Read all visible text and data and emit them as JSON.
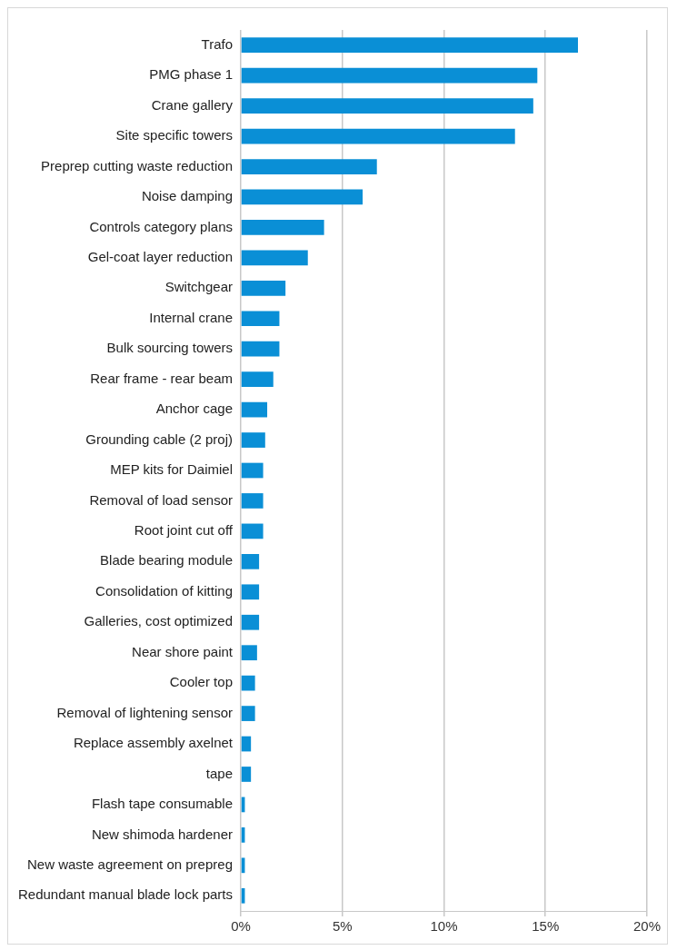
{
  "chart_data": {
    "type": "bar",
    "orientation": "horizontal",
    "categories": [
      "Trafo",
      "PMG phase 1",
      "Crane gallery",
      "Site specific towers",
      "Preprep cutting waste reduction",
      "Noise damping",
      "Controls category plans",
      "Gel-coat layer reduction",
      "Switchgear",
      "Internal crane",
      "Bulk sourcing towers",
      "Rear frame - rear beam",
      "Anchor cage",
      "Grounding cable (2 proj)",
      "MEP kits for Daimiel",
      "Removal of load sensor",
      "Root joint cut off",
      "Blade bearing module",
      "Consolidation of kitting",
      "Galleries, cost optimized",
      "Near shore paint",
      "Cooler top",
      "Removal of lightening sensor",
      "Replace assembly axelnet",
      "tape",
      "Flash tape consumable",
      "New shimoda hardener",
      "New waste agreement on prepreg",
      "Redundant manual blade lock parts"
    ],
    "values": [
      16.6,
      14.6,
      14.4,
      13.5,
      6.7,
      6.0,
      4.1,
      3.3,
      2.2,
      1.9,
      1.9,
      1.6,
      1.3,
      1.2,
      1.1,
      1.1,
      1.1,
      0.9,
      0.9,
      0.9,
      0.8,
      0.7,
      0.7,
      0.5,
      0.5,
      0.2,
      0.2,
      0.2,
      0.2
    ],
    "color": "#0a8fd6",
    "xlim": [
      0,
      20
    ],
    "xticks": [
      {
        "value": 0,
        "label": "0%"
      },
      {
        "value": 5,
        "label": "5%"
      },
      {
        "value": 10,
        "label": "10%"
      },
      {
        "value": 15,
        "label": "15%"
      },
      {
        "value": 20,
        "label": "20%"
      }
    ],
    "grid": "x"
  }
}
